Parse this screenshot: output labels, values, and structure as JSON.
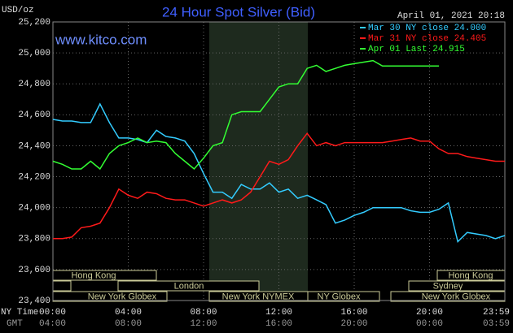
{
  "chart_data": {
    "type": "line",
    "title": "24 Hour Spot Silver (Bid)",
    "unit_label": "USD/oz",
    "timestamp": "April 01, 2021 20:18",
    "website": "www.kitco.com",
    "x_row_label": "NY Time",
    "x2_row_label": "GMT",
    "sessions": [
      "Hong Kong",
      "Hong Kong",
      "London",
      "Sydney",
      "New York Globex",
      "New York NYMEX",
      "NY Globex",
      "New York Globex"
    ],
    "x": [
      0,
      0.5,
      1,
      1.5,
      2,
      2.5,
      3,
      3.5,
      4,
      4.5,
      5,
      5.5,
      6,
      6.5,
      7,
      7.5,
      8,
      8.5,
      9,
      9.5,
      10,
      10.5,
      11,
      11.5,
      12,
      12.5,
      13,
      13.5,
      14,
      14.5,
      15,
      15.5,
      16,
      16.5,
      17,
      17.5,
      18,
      18.5,
      19,
      19.5,
      20,
      20.5,
      21,
      21.5,
      22,
      22.5,
      23,
      23.5,
      24
    ],
    "xlim": [
      0,
      24
    ],
    "xticks": [
      {
        "value": 0,
        "label": "00:00"
      },
      {
        "value": 4,
        "label": "04:00"
      },
      {
        "value": 8,
        "label": "08:00"
      },
      {
        "value": 12,
        "label": "12:00"
      },
      {
        "value": 16,
        "label": "16:00"
      },
      {
        "value": 20,
        "label": "20:00"
      },
      {
        "value": 24,
        "label": "23:59"
      }
    ],
    "x2ticks": [
      {
        "value": 0,
        "label": "04:00"
      },
      {
        "value": 4,
        "label": "08:00"
      },
      {
        "value": 8,
        "label": "12:00"
      },
      {
        "value": 12,
        "label": "16:00"
      },
      {
        "value": 16,
        "label": "20:00"
      },
      {
        "value": 20,
        "label": "00:00"
      },
      {
        "value": 24,
        "label": "03:59"
      }
    ],
    "ylim": [
      23.4,
      25.2
    ],
    "yticks": [
      {
        "value": 23.4,
        "label": "23,400"
      },
      {
        "value": 23.6,
        "label": "23,600"
      },
      {
        "value": 23.8,
        "label": "23,800"
      },
      {
        "value": 24.0,
        "label": "24,000"
      },
      {
        "value": 24.2,
        "label": "24,200"
      },
      {
        "value": 24.4,
        "label": "24,400"
      },
      {
        "value": 24.6,
        "label": "24,600"
      },
      {
        "value": 24.8,
        "label": "24,800"
      },
      {
        "value": 25.0,
        "label": "25,000"
      },
      {
        "value": 25.2,
        "label": "25,200"
      }
    ],
    "grid": true,
    "legend": "top-right",
    "series": [
      {
        "name": "Mar 30 NY close 24.000",
        "color": "#33ccff",
        "values": [
          24.57,
          24.56,
          24.56,
          24.55,
          24.55,
          24.67,
          24.55,
          24.45,
          24.45,
          24.44,
          24.42,
          24.5,
          24.46,
          24.45,
          24.43,
          24.35,
          24.22,
          24.1,
          24.1,
          24.06,
          24.15,
          24.12,
          24.12,
          24.16,
          24.1,
          24.12,
          24.06,
          24.08,
          24.05,
          24.02,
          23.9,
          23.92,
          23.95,
          23.97,
          24.0,
          24.0,
          24.0,
          24.0,
          23.98,
          23.97,
          23.97,
          23.99,
          24.03,
          23.78,
          23.84,
          23.83,
          23.82,
          23.8,
          23.82
        ]
      },
      {
        "name": "Mar 31 NY close 24.405",
        "color": "#ff1a1a",
        "values": [
          23.8,
          23.8,
          23.81,
          23.87,
          23.88,
          23.9,
          24.0,
          24.12,
          24.08,
          24.06,
          24.1,
          24.09,
          24.06,
          24.05,
          24.05,
          24.03,
          24.01,
          24.03,
          24.05,
          24.03,
          24.05,
          24.1,
          24.2,
          24.3,
          24.28,
          24.31,
          24.4,
          24.48,
          24.4,
          24.42,
          24.4,
          24.42,
          24.42,
          24.42,
          24.42,
          24.42,
          24.43,
          24.44,
          24.45,
          24.43,
          24.43,
          24.38,
          24.35,
          24.35,
          24.33,
          24.32,
          24.31,
          24.3,
          24.3
        ]
      },
      {
        "name": "Apr 01 Last 24.915",
        "color": "#33ff33",
        "values": [
          24.3,
          24.28,
          24.25,
          24.25,
          24.3,
          24.25,
          24.35,
          24.4,
          24.42,
          24.45,
          24.42,
          24.43,
          24.42,
          24.35,
          24.3,
          24.25,
          24.32,
          24.4,
          24.42,
          24.6,
          24.62,
          24.62,
          24.62,
          24.7,
          24.78,
          24.8,
          24.8,
          24.9,
          24.92,
          24.88,
          24.9,
          24.92,
          24.93,
          24.94,
          24.95,
          24.915,
          24.915,
          24.915,
          24.915,
          24.915,
          24.915,
          24.915,
          null,
          null,
          null,
          null,
          null,
          null,
          null
        ]
      }
    ]
  }
}
